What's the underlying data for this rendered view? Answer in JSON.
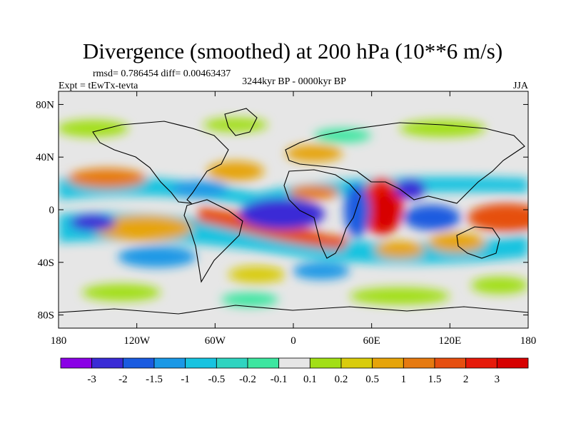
{
  "chart_data": {
    "type": "heatmap",
    "title": "Divergence (smoothed) at 200 hPa (10**6 m/s)",
    "stats": "rmsd= 0.786454 diff= 0.00463437",
    "experiment": "Expt = tEwTx-tevta",
    "period": "3244kyr BP - 0000kyr BP",
    "season": "JJA",
    "x_ticks": [
      "180",
      "120W",
      "60W",
      "0",
      "60E",
      "120E",
      "180"
    ],
    "x_tick_values": [
      -180,
      -120,
      -60,
      0,
      60,
      120,
      180
    ],
    "y_ticks": [
      "80N",
      "40N",
      "0",
      "40S",
      "80S"
    ],
    "y_tick_values": [
      80,
      40,
      0,
      -40,
      -80
    ],
    "xlim": [
      -180,
      180
    ],
    "ylim": [
      -90,
      90
    ],
    "colorbar": {
      "labels": [
        "-3",
        "-2",
        "-1.5",
        "-1",
        "-0.5",
        "-0.2",
        "-0.1",
        "0.1",
        "0.2",
        "0.5",
        "1",
        "1.5",
        "2",
        "3"
      ],
      "colors": [
        "#8a00e6",
        "#3a2bd6",
        "#1a5be0",
        "#1a98e6",
        "#17c3e0",
        "#2fd4c0",
        "#3de6a0",
        "#e6e6e6",
        "#a2df16",
        "#d9cc0c",
        "#e6a40a",
        "#e67a10",
        "#e64f10",
        "#e61a0a",
        "#d70000"
      ]
    },
    "features": [
      {
        "name": "strong-convergence-atlantic",
        "lon": -15,
        "lat": 2,
        "value": -3.0
      },
      {
        "name": "strong-divergence-indian-ocean",
        "lon": 72,
        "lat": 5,
        "value": 3.0
      },
      {
        "name": "divergence-maritime-continent",
        "lon": 150,
        "lat": -3,
        "value": 2.2
      },
      {
        "name": "divergence-tropical-atlantic-south",
        "lon": -25,
        "lat": -10,
        "value": 2.0
      },
      {
        "name": "convergence-east-africa",
        "lon": 45,
        "lat": -3,
        "value": -2.0
      },
      {
        "name": "convergence-east-pacific",
        "lon": -155,
        "lat": -10,
        "value": -2.0
      },
      {
        "name": "convergence-indian-south",
        "lon": 95,
        "lat": -8,
        "value": -2.0
      }
    ]
  }
}
